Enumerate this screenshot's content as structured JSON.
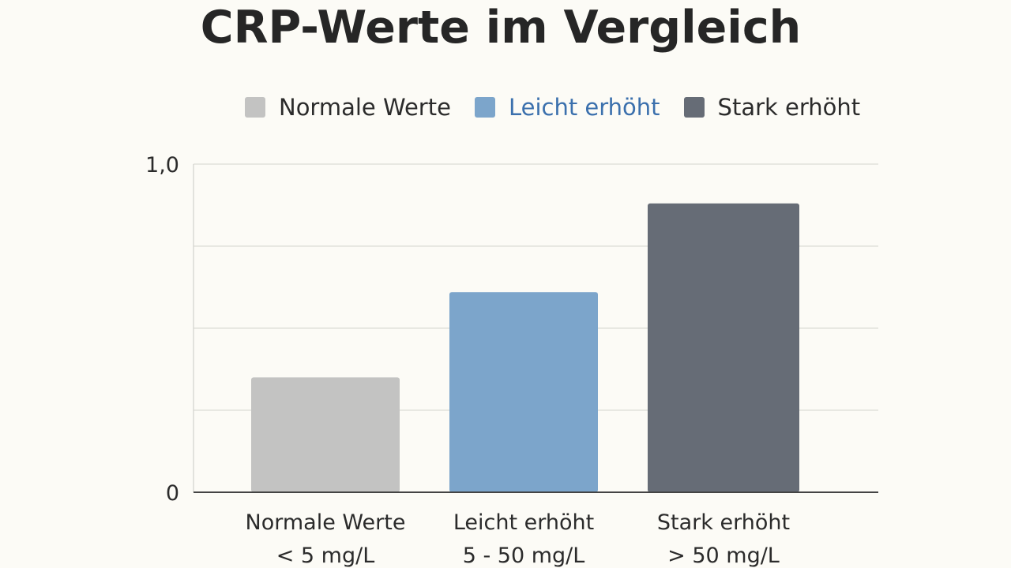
{
  "chart_data": {
    "type": "bar",
    "title": "CRP-Werte im Vergleich",
    "xlabel": "",
    "ylabel": "",
    "ylim": [
      0,
      1.0
    ],
    "yticks": [
      {
        "value": 0,
        "label": "0"
      },
      {
        "value": 1.0,
        "label": "1,0"
      }
    ],
    "gridlines": [
      0.25,
      0.5,
      0.75,
      1.0
    ],
    "grid": true,
    "legend_position": "top-right",
    "categories": [
      {
        "line1": "Normale Werte",
        "line2": "< 5 mg/L"
      },
      {
        "line1": "Leicht erhöht",
        "line2": "5 - 50 mg/L"
      },
      {
        "line1": "Stark erhöht",
        "line2": "> 50 mg/L"
      }
    ],
    "values": [
      0.35,
      0.61,
      0.88
    ],
    "colors": [
      "#c3c3c2",
      "#7ca5cb",
      "#666c76"
    ],
    "legend": [
      {
        "label": "Normale Werte",
        "color": "#c3c3c2",
        "text_color": "#2b2b2b"
      },
      {
        "label": "Leicht erhöht",
        "color": "#7ca5cb",
        "text_color": "#3b70ad"
      },
      {
        "label": "Stark erhöht",
        "color": "#666c76",
        "text_color": "#2b2b2b"
      }
    ]
  }
}
